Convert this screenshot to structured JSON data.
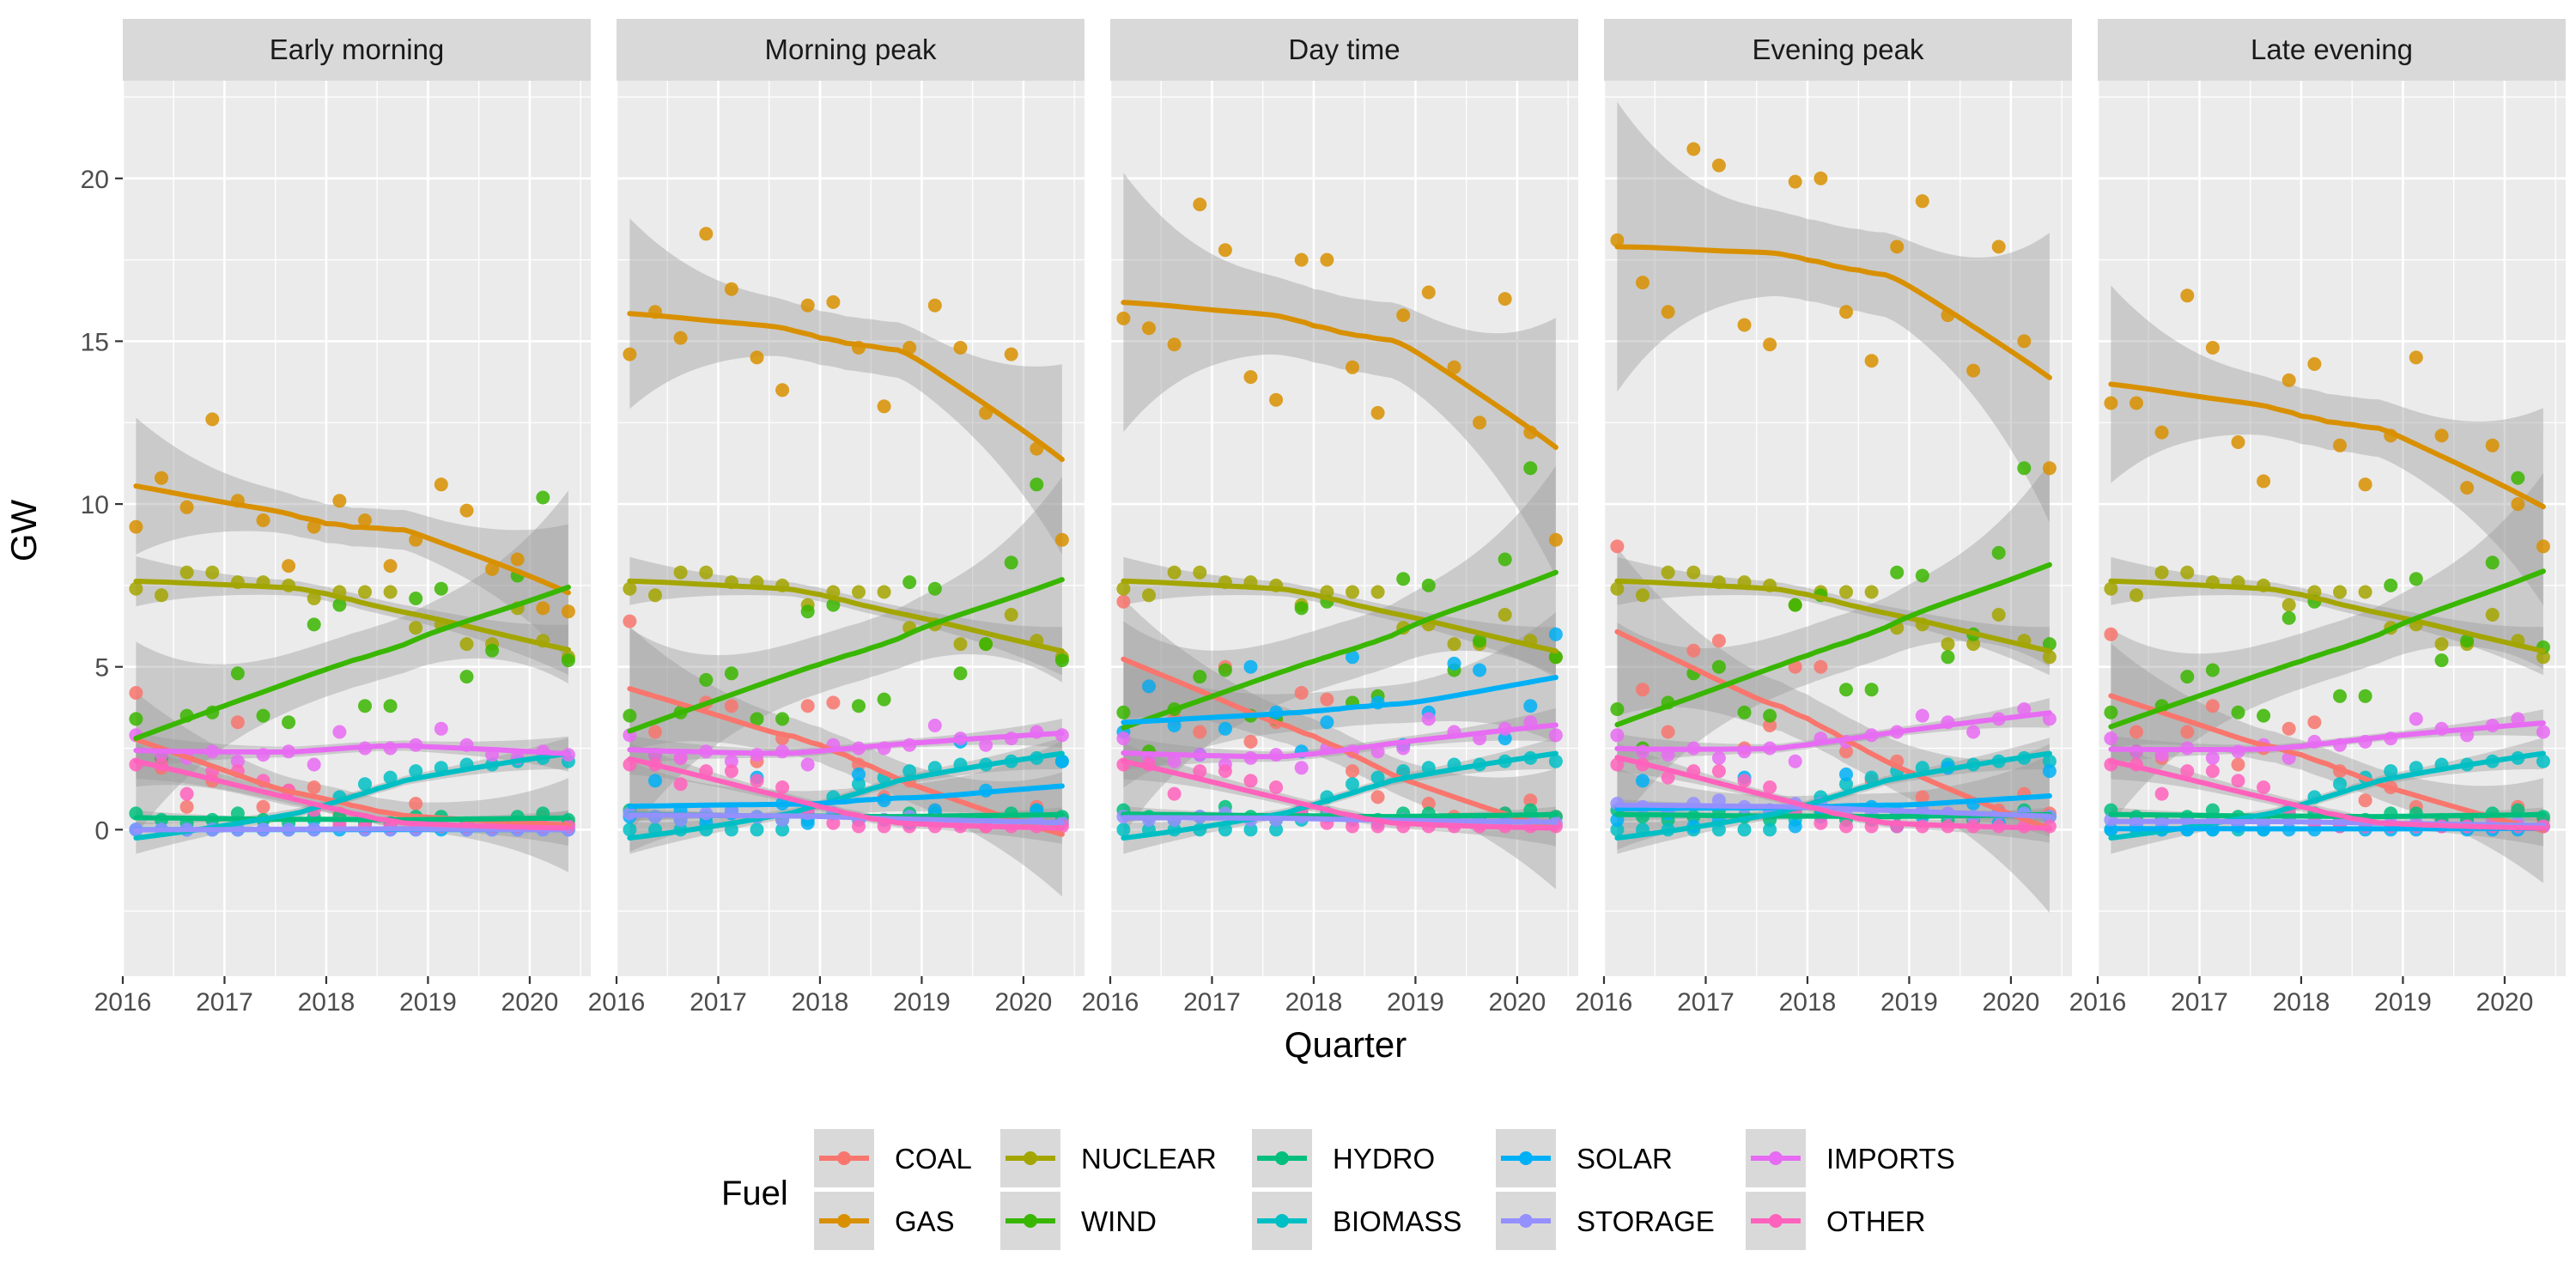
{
  "chart_data": {
    "type": "scatter",
    "facets": [
      "Early morning",
      "Morning peak",
      "Day time",
      "Evening peak",
      "Late evening"
    ],
    "xlabel": "Quarter",
    "ylabel": "GW",
    "x_ticks": [
      2016,
      2017,
      2018,
      2019,
      2020
    ],
    "y_ticks": [
      0,
      5,
      10,
      15,
      20
    ],
    "xlim": [
      2016,
      2020.6
    ],
    "ylim": [
      -4.5,
      23
    ],
    "smooth": "loess with confidence band",
    "legend": {
      "title": "Fuel",
      "placement": "bottom"
    },
    "x": [
      2016.13,
      2016.38,
      2016.63,
      2016.88,
      2017.13,
      2017.38,
      2017.63,
      2017.88,
      2018.13,
      2018.38,
      2018.63,
      2018.88,
      2019.13,
      2019.38,
      2019.63,
      2019.88,
      2020.13,
      2020.38
    ],
    "series": [
      {
        "name": "COAL",
        "color": "#F8766D",
        "values": {
          "Early morning": [
            4.2,
            1.9,
            0.7,
            1.5,
            3.3,
            0.7,
            1.2,
            1.3,
            0.5,
            0.3,
            0.2,
            0.8,
            0.2,
            0.1,
            0.1,
            0.2,
            0.4,
            0.2
          ],
          "Morning peak": [
            6.4,
            3.0,
            2.2,
            3.9,
            3.8,
            2.1,
            2.8,
            3.8,
            3.9,
            2.0,
            1.0,
            1.5,
            0.6,
            0.2,
            0.1,
            0.3,
            0.7,
            0.3
          ],
          "Day time": [
            7.0,
            4.4,
            3.4,
            3.0,
            5.0,
            2.7,
            3.3,
            4.2,
            4.0,
            1.8,
            1.0,
            1.7,
            0.8,
            0.4,
            0.2,
            0.5,
            0.9,
            0.4
          ],
          "Evening peak": [
            8.7,
            4.3,
            3.0,
            5.5,
            5.8,
            2.5,
            3.2,
            5.0,
            5.0,
            2.4,
            1.5,
            2.1,
            1.0,
            0.5,
            0.3,
            0.6,
            1.1,
            0.5
          ],
          "Late evening": [
            6.0,
            3.0,
            2.2,
            3.0,
            3.8,
            2.0,
            2.5,
            3.1,
            3.3,
            1.8,
            0.9,
            1.3,
            0.7,
            0.3,
            0.2,
            0.3,
            0.7,
            0.3
          ]
        }
      },
      {
        "name": "GAS",
        "color": "#D89000",
        "values": {
          "Early morning": [
            9.3,
            10.8,
            9.9,
            12.6,
            10.1,
            9.5,
            8.1,
            9.3,
            10.1,
            9.5,
            8.1,
            8.9,
            10.6,
            9.8,
            8.0,
            8.3,
            6.8,
            6.7
          ],
          "Morning peak": [
            14.6,
            15.9,
            15.1,
            18.3,
            16.6,
            14.5,
            13.5,
            16.1,
            16.2,
            14.8,
            13.0,
            14.8,
            16.1,
            14.8,
            12.8,
            14.6,
            11.7,
            8.9
          ],
          "Day time": [
            15.7,
            15.4,
            14.9,
            19.2,
            17.8,
            13.9,
            13.2,
            17.5,
            17.5,
            14.2,
            12.8,
            15.8,
            16.5,
            14.2,
            12.5,
            16.3,
            12.2,
            8.9
          ],
          "Evening peak": [
            18.1,
            16.8,
            15.9,
            20.9,
            20.4,
            15.5,
            14.9,
            19.9,
            20.0,
            15.9,
            14.4,
            17.9,
            19.3,
            15.8,
            14.1,
            17.9,
            15.0,
            11.1
          ],
          "Late evening": [
            13.1,
            13.1,
            12.2,
            16.4,
            14.8,
            11.9,
            10.7,
            13.8,
            14.3,
            11.8,
            10.6,
            12.1,
            14.5,
            12.1,
            10.5,
            11.8,
            10.0,
            8.7
          ]
        }
      },
      {
        "name": "NUCLEAR",
        "color": "#A3A500",
        "values": {
          "Early morning": [
            7.4,
            7.2,
            7.9,
            7.9,
            7.6,
            7.6,
            7.5,
            7.1,
            7.3,
            7.3,
            7.3,
            6.2,
            6.3,
            5.7,
            5.7,
            6.8,
            5.8,
            5.3
          ],
          "Morning peak": [
            7.4,
            7.2,
            7.9,
            7.9,
            7.6,
            7.6,
            7.5,
            6.9,
            7.3,
            7.3,
            7.3,
            6.2,
            6.3,
            5.7,
            5.7,
            6.6,
            5.8,
            5.3
          ],
          "Day time": [
            7.4,
            7.2,
            7.9,
            7.9,
            7.6,
            7.6,
            7.5,
            6.9,
            7.3,
            7.3,
            7.3,
            6.2,
            6.3,
            5.7,
            5.7,
            6.6,
            5.8,
            5.3
          ],
          "Evening peak": [
            7.4,
            7.2,
            7.9,
            7.9,
            7.6,
            7.6,
            7.5,
            6.9,
            7.3,
            7.3,
            7.3,
            6.2,
            6.3,
            5.7,
            5.7,
            6.6,
            5.8,
            5.3
          ],
          "Late evening": [
            7.4,
            7.2,
            7.9,
            7.9,
            7.6,
            7.6,
            7.5,
            6.9,
            7.3,
            7.3,
            7.3,
            6.2,
            6.3,
            5.7,
            5.7,
            6.6,
            5.8,
            5.3
          ]
        }
      },
      {
        "name": "WIND",
        "color": "#39B600",
        "values": {
          "Early morning": [
            3.4,
            2.2,
            3.5,
            3.6,
            4.8,
            3.5,
            3.3,
            6.3,
            6.9,
            3.8,
            3.8,
            7.1,
            7.4,
            4.7,
            5.5,
            7.8,
            10.2,
            5.2
          ],
          "Morning peak": [
            3.5,
            2.3,
            3.6,
            4.6,
            4.8,
            3.4,
            3.4,
            6.7,
            6.9,
            3.8,
            4.0,
            7.6,
            7.4,
            4.8,
            5.7,
            8.2,
            10.6,
            5.2
          ],
          "Day time": [
            3.6,
            2.4,
            3.7,
            4.7,
            4.9,
            3.5,
            3.4,
            6.8,
            7.0,
            3.9,
            4.1,
            7.7,
            7.5,
            4.9,
            5.8,
            8.3,
            11.1,
            5.3
          ],
          "Evening peak": [
            3.7,
            2.5,
            3.9,
            4.8,
            5.0,
            3.6,
            3.5,
            6.9,
            7.2,
            4.3,
            4.3,
            7.9,
            7.8,
            5.3,
            6.0,
            8.5,
            11.1,
            5.7
          ],
          "Late evening": [
            3.6,
            2.4,
            3.8,
            4.7,
            4.9,
            3.6,
            3.5,
            6.5,
            7.0,
            4.1,
            4.1,
            7.5,
            7.7,
            5.2,
            5.8,
            8.2,
            10.8,
            5.6
          ]
        }
      },
      {
        "name": "HYDRO",
        "color": "#00BF7D",
        "values": {
          "Early morning": [
            0.5,
            0.3,
            0.2,
            0.3,
            0.5,
            0.3,
            0.2,
            0.4,
            0.4,
            0.2,
            0.2,
            0.4,
            0.4,
            0.2,
            0.2,
            0.4,
            0.5,
            0.3
          ],
          "Morning peak": [
            0.6,
            0.4,
            0.3,
            0.4,
            0.6,
            0.4,
            0.3,
            0.5,
            0.5,
            0.3,
            0.3,
            0.5,
            0.5,
            0.3,
            0.3,
            0.5,
            0.6,
            0.4
          ],
          "Day time": [
            0.6,
            0.4,
            0.3,
            0.4,
            0.7,
            0.4,
            0.3,
            0.5,
            0.5,
            0.3,
            0.3,
            0.5,
            0.5,
            0.3,
            0.3,
            0.5,
            0.6,
            0.4
          ],
          "Evening peak": [
            0.6,
            0.4,
            0.3,
            0.4,
            0.6,
            0.4,
            0.3,
            0.5,
            0.5,
            0.3,
            0.3,
            0.5,
            0.5,
            0.3,
            0.3,
            0.5,
            0.6,
            0.4
          ],
          "Late evening": [
            0.6,
            0.4,
            0.3,
            0.4,
            0.6,
            0.4,
            0.3,
            0.5,
            0.5,
            0.3,
            0.3,
            0.5,
            0.5,
            0.3,
            0.3,
            0.5,
            0.6,
            0.4
          ]
        }
      },
      {
        "name": "BIOMASS",
        "color": "#00BFC4",
        "values": {
          "Early morning": [
            0.0,
            0.0,
            0.0,
            0.0,
            0.0,
            0.0,
            0.0,
            0.3,
            1.0,
            1.4,
            1.6,
            1.8,
            1.9,
            2.0,
            2.0,
            2.1,
            2.2,
            2.1
          ],
          "Morning peak": [
            0.0,
            0.0,
            0.0,
            0.0,
            0.0,
            0.0,
            0.0,
            0.3,
            1.0,
            1.4,
            1.6,
            1.8,
            1.9,
            2.0,
            2.0,
            2.1,
            2.2,
            2.1
          ],
          "Day time": [
            0.0,
            0.0,
            0.0,
            0.0,
            0.0,
            0.0,
            0.0,
            0.3,
            1.0,
            1.4,
            1.6,
            1.8,
            1.9,
            2.0,
            2.0,
            2.1,
            2.2,
            2.1
          ],
          "Evening peak": [
            0.0,
            0.0,
            0.0,
            0.0,
            0.0,
            0.0,
            0.0,
            0.3,
            1.0,
            1.4,
            1.6,
            1.8,
            1.9,
            2.0,
            2.0,
            2.1,
            2.2,
            2.1
          ],
          "Late evening": [
            0.0,
            0.0,
            0.0,
            0.0,
            0.0,
            0.0,
            0.0,
            0.3,
            1.0,
            1.4,
            1.6,
            1.8,
            1.9,
            2.0,
            2.0,
            2.1,
            2.2,
            2.1
          ]
        }
      },
      {
        "name": "SOLAR",
        "color": "#00B0F6",
        "values": {
          "Early morning": [
            0.0,
            0.0,
            0.0,
            0.0,
            0.0,
            0.0,
            0.0,
            0.0,
            0.0,
            0.0,
            0.0,
            0.0,
            0.0,
            0.0,
            0.0,
            0.0,
            0.0,
            0.0
          ],
          "Morning peak": [
            0.4,
            1.5,
            0.6,
            0.2,
            0.5,
            1.6,
            0.8,
            0.2,
            0.5,
            1.7,
            0.9,
            0.2,
            0.6,
            2.7,
            1.2,
            0.3,
            0.6,
            2.1
          ],
          "Day time": [
            3.0,
            4.4,
            3.2,
            2.3,
            3.1,
            5.0,
            3.6,
            2.4,
            3.3,
            5.3,
            3.9,
            2.6,
            3.6,
            5.1,
            4.9,
            2.8,
            3.8,
            6.0
          ],
          "Evening peak": [
            0.3,
            1.5,
            0.5,
            0.1,
            0.3,
            1.6,
            0.6,
            0.1,
            0.4,
            1.7,
            0.7,
            0.1,
            0.4,
            1.9,
            0.8,
            0.2,
            0.5,
            1.8
          ],
          "Late evening": [
            0.0,
            0.1,
            0.0,
            0.0,
            0.0,
            0.1,
            0.0,
            0.0,
            0.0,
            0.1,
            0.0,
            0.0,
            0.0,
            0.1,
            0.0,
            0.0,
            0.0,
            0.1
          ]
        }
      },
      {
        "name": "STORAGE",
        "color": "#9590FF",
        "values": {
          "Early morning": [
            0.0,
            0.0,
            0.0,
            0.0,
            0.0,
            0.0,
            0.0,
            0.0,
            0.1,
            0.0,
            0.0,
            0.0,
            0.1,
            0.0,
            0.0,
            0.0,
            0.0,
            0.0
          ],
          "Morning peak": [
            0.5,
            0.4,
            0.3,
            0.5,
            0.6,
            0.4,
            0.3,
            0.5,
            0.5,
            0.3,
            0.3,
            0.4,
            0.3,
            0.2,
            0.2,
            0.3,
            0.3,
            0.2
          ],
          "Day time": [
            0.4,
            0.3,
            0.3,
            0.4,
            0.5,
            0.3,
            0.3,
            0.4,
            0.4,
            0.3,
            0.2,
            0.3,
            0.3,
            0.2,
            0.2,
            0.3,
            0.3,
            0.2
          ],
          "Evening peak": [
            0.8,
            0.7,
            0.6,
            0.8,
            0.9,
            0.7,
            0.6,
            0.8,
            0.8,
            0.6,
            0.5,
            0.6,
            0.6,
            0.5,
            0.4,
            0.5,
            0.5,
            0.4
          ],
          "Late evening": [
            0.3,
            0.2,
            0.2,
            0.3,
            0.3,
            0.2,
            0.2,
            0.3,
            0.3,
            0.2,
            0.2,
            0.2,
            0.2,
            0.1,
            0.1,
            0.2,
            0.2,
            0.1
          ]
        }
      },
      {
        "name": "IMPORTS",
        "color": "#E76BF3",
        "values": {
          "Early morning": [
            2.9,
            2.3,
            2.2,
            2.4,
            2.1,
            2.3,
            2.4,
            2.0,
            3.0,
            2.5,
            2.5,
            2.6,
            3.1,
            2.6,
            2.3,
            2.2,
            2.4,
            2.3
          ],
          "Morning peak": [
            2.9,
            2.3,
            2.2,
            2.4,
            2.1,
            2.3,
            2.4,
            2.0,
            2.6,
            2.5,
            2.5,
            2.6,
            3.2,
            2.8,
            2.6,
            2.8,
            3.0,
            2.9
          ],
          "Day time": [
            2.8,
            2.2,
            2.1,
            2.3,
            2.0,
            2.2,
            2.3,
            1.9,
            2.5,
            2.4,
            2.4,
            2.5,
            3.4,
            3.0,
            2.8,
            3.1,
            3.3,
            2.9
          ],
          "Evening peak": [
            2.9,
            2.4,
            2.3,
            2.5,
            2.2,
            2.4,
            2.5,
            2.1,
            2.8,
            2.7,
            2.9,
            3.0,
            3.5,
            3.3,
            3.0,
            3.4,
            3.7,
            3.4
          ],
          "Late evening": [
            2.8,
            2.4,
            2.3,
            2.5,
            2.2,
            2.4,
            2.6,
            2.2,
            2.7,
            2.6,
            2.7,
            2.8,
            3.4,
            3.1,
            2.9,
            3.2,
            3.4,
            3.0
          ]
        }
      },
      {
        "name": "OTHER",
        "color": "#FF62BC",
        "values": {
          "Early morning": [
            2.0,
            2.0,
            1.1,
            1.8,
            1.8,
            1.5,
            1.2,
            0.6,
            0.2,
            0.1,
            0.1,
            0.1,
            0.1,
            0.1,
            0.1,
            0.1,
            0.1,
            0.1
          ],
          "Morning peak": [
            2.0,
            2.0,
            1.4,
            1.8,
            1.8,
            1.5,
            1.3,
            0.6,
            0.2,
            0.1,
            0.1,
            0.1,
            0.1,
            0.1,
            0.1,
            0.1,
            0.1,
            0.1
          ],
          "Day time": [
            2.0,
            2.0,
            1.1,
            1.8,
            1.8,
            1.5,
            1.3,
            0.6,
            0.2,
            0.1,
            0.1,
            0.1,
            0.1,
            0.1,
            0.1,
            0.1,
            0.1,
            0.1
          ],
          "Evening peak": [
            2.0,
            2.0,
            1.6,
            1.8,
            1.8,
            1.5,
            1.3,
            0.6,
            0.2,
            0.1,
            0.1,
            0.1,
            0.1,
            0.1,
            0.1,
            0.1,
            0.1,
            0.1
          ],
          "Late evening": [
            2.0,
            2.0,
            1.1,
            1.8,
            1.8,
            1.5,
            1.3,
            0.6,
            0.2,
            0.1,
            0.1,
            0.1,
            0.1,
            0.1,
            0.1,
            0.1,
            0.1,
            0.1
          ]
        }
      }
    ]
  }
}
